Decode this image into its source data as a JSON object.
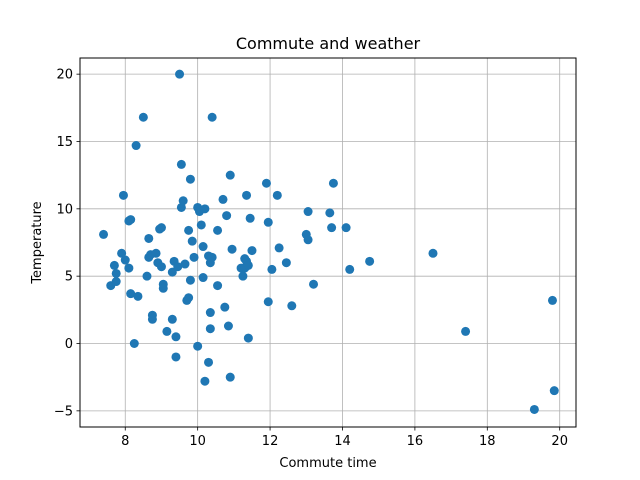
{
  "chart_data": {
    "type": "scatter",
    "title": "Commute and weather",
    "xlabel": "Commute time",
    "ylabel": "Temperature",
    "xlim": [
      6.75,
      20.45
    ],
    "ylim": [
      -6.2,
      21.2
    ],
    "xticks": [
      8,
      10,
      12,
      14,
      16,
      18,
      20
    ],
    "yticks": [
      -5,
      0,
      5,
      10,
      15,
      20
    ],
    "grid": true,
    "marker_color": "#1f77b4",
    "points": [
      {
        "x": 7.4,
        "y": 8.1
      },
      {
        "x": 7.6,
        "y": 4.3
      },
      {
        "x": 7.7,
        "y": 5.8
      },
      {
        "x": 7.75,
        "y": 5.2
      },
      {
        "x": 7.75,
        "y": 4.6
      },
      {
        "x": 7.9,
        "y": 6.7
      },
      {
        "x": 7.95,
        "y": 11.0
      },
      {
        "x": 8.0,
        "y": 6.2
      },
      {
        "x": 8.1,
        "y": 5.6
      },
      {
        "x": 8.1,
        "y": 9.1
      },
      {
        "x": 8.15,
        "y": 9.2
      },
      {
        "x": 8.15,
        "y": 3.7
      },
      {
        "x": 8.25,
        "y": 0.0
      },
      {
        "x": 8.3,
        "y": 14.7
      },
      {
        "x": 8.35,
        "y": 3.5
      },
      {
        "x": 8.5,
        "y": 16.8
      },
      {
        "x": 8.6,
        "y": 5.0
      },
      {
        "x": 8.65,
        "y": 6.4
      },
      {
        "x": 8.65,
        "y": 7.8
      },
      {
        "x": 8.7,
        "y": 6.6
      },
      {
        "x": 8.75,
        "y": 2.1
      },
      {
        "x": 8.75,
        "y": 1.8
      },
      {
        "x": 8.85,
        "y": 6.7
      },
      {
        "x": 8.9,
        "y": 6.0
      },
      {
        "x": 8.95,
        "y": 8.5
      },
      {
        "x": 9.0,
        "y": 8.6
      },
      {
        "x": 9.0,
        "y": 5.7
      },
      {
        "x": 9.05,
        "y": 4.4
      },
      {
        "x": 9.05,
        "y": 4.1
      },
      {
        "x": 9.15,
        "y": 0.9
      },
      {
        "x": 9.3,
        "y": 1.8
      },
      {
        "x": 9.3,
        "y": 5.3
      },
      {
        "x": 9.35,
        "y": 6.1
      },
      {
        "x": 9.4,
        "y": 0.5
      },
      {
        "x": 9.4,
        "y": -1.0
      },
      {
        "x": 9.45,
        "y": 5.7
      },
      {
        "x": 9.5,
        "y": 20.0
      },
      {
        "x": 9.55,
        "y": 10.1
      },
      {
        "x": 9.55,
        "y": 13.3
      },
      {
        "x": 9.6,
        "y": 10.6
      },
      {
        "x": 9.65,
        "y": 5.9
      },
      {
        "x": 9.7,
        "y": 3.2
      },
      {
        "x": 9.75,
        "y": 3.4
      },
      {
        "x": 9.75,
        "y": 8.4
      },
      {
        "x": 9.8,
        "y": 4.7
      },
      {
        "x": 9.8,
        "y": 12.2
      },
      {
        "x": 9.85,
        "y": 7.6
      },
      {
        "x": 9.9,
        "y": 6.4
      },
      {
        "x": 10.0,
        "y": 10.1
      },
      {
        "x": 10.0,
        "y": -0.2
      },
      {
        "x": 10.05,
        "y": 9.8
      },
      {
        "x": 10.1,
        "y": 8.8
      },
      {
        "x": 10.15,
        "y": 7.2
      },
      {
        "x": 10.15,
        "y": 4.9
      },
      {
        "x": 10.2,
        "y": 10.0
      },
      {
        "x": 10.2,
        "y": -2.8
      },
      {
        "x": 10.3,
        "y": 6.5
      },
      {
        "x": 10.3,
        "y": -1.4
      },
      {
        "x": 10.35,
        "y": 6.0
      },
      {
        "x": 10.35,
        "y": 2.3
      },
      {
        "x": 10.35,
        "y": 1.1
      },
      {
        "x": 10.4,
        "y": 6.4
      },
      {
        "x": 10.4,
        "y": 16.8
      },
      {
        "x": 10.55,
        "y": 8.4
      },
      {
        "x": 10.55,
        "y": 4.3
      },
      {
        "x": 10.7,
        "y": 10.7
      },
      {
        "x": 10.75,
        "y": 2.7
      },
      {
        "x": 10.8,
        "y": 9.5
      },
      {
        "x": 10.85,
        "y": 1.3
      },
      {
        "x": 10.9,
        "y": 12.5
      },
      {
        "x": 10.9,
        "y": -2.5
      },
      {
        "x": 10.95,
        "y": 7.0
      },
      {
        "x": 11.2,
        "y": 5.6
      },
      {
        "x": 11.25,
        "y": 5.0
      },
      {
        "x": 11.3,
        "y": 6.3
      },
      {
        "x": 11.3,
        "y": 5.6
      },
      {
        "x": 11.35,
        "y": 6.1
      },
      {
        "x": 11.35,
        "y": 11.0
      },
      {
        "x": 11.4,
        "y": 5.8
      },
      {
        "x": 11.4,
        "y": 0.4
      },
      {
        "x": 11.45,
        "y": 9.3
      },
      {
        "x": 11.5,
        "y": 6.9
      },
      {
        "x": 11.9,
        "y": 11.9
      },
      {
        "x": 11.95,
        "y": 9.0
      },
      {
        "x": 11.95,
        "y": 3.1
      },
      {
        "x": 12.05,
        "y": 5.5
      },
      {
        "x": 12.2,
        "y": 11.0
      },
      {
        "x": 12.25,
        "y": 7.1
      },
      {
        "x": 12.45,
        "y": 6.0
      },
      {
        "x": 12.6,
        "y": 2.8
      },
      {
        "x": 13.0,
        "y": 8.1
      },
      {
        "x": 13.05,
        "y": 9.8
      },
      {
        "x": 13.05,
        "y": 7.7
      },
      {
        "x": 13.2,
        "y": 4.4
      },
      {
        "x": 13.65,
        "y": 9.7
      },
      {
        "x": 13.7,
        "y": 8.6
      },
      {
        "x": 13.75,
        "y": 11.9
      },
      {
        "x": 14.1,
        "y": 8.6
      },
      {
        "x": 14.2,
        "y": 5.5
      },
      {
        "x": 14.75,
        "y": 6.1
      },
      {
        "x": 16.5,
        "y": 6.7
      },
      {
        "x": 17.4,
        "y": 0.9
      },
      {
        "x": 19.3,
        "y": -4.9
      },
      {
        "x": 19.8,
        "y": 3.2
      },
      {
        "x": 19.85,
        "y": -3.5
      }
    ]
  }
}
